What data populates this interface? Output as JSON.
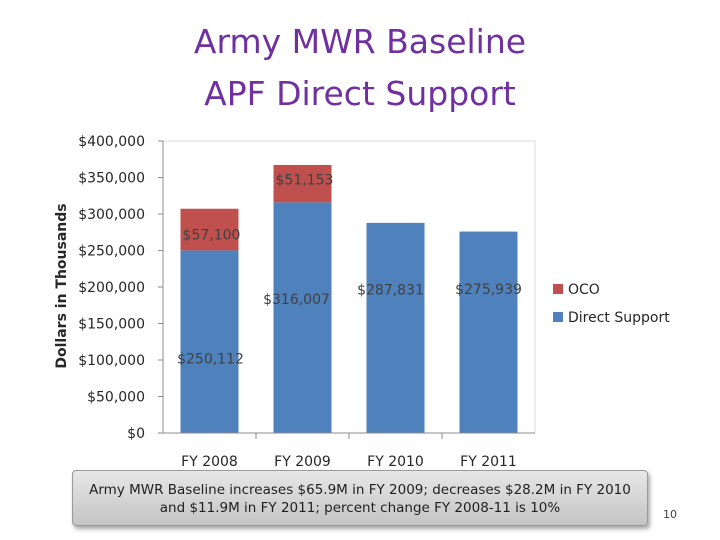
{
  "chart_data": {
    "type": "bar",
    "stacked": true,
    "title": "Army MWR Baseline",
    "subtitle": "APF Direct Support",
    "ylabel": "Dollars in Thousands",
    "xlabel": "",
    "categories": [
      "FY 2008",
      "FY 2009",
      "FY 2010",
      "FY 2011"
    ],
    "series": [
      {
        "name": "Direct Support",
        "color": "#4f81bd",
        "values": [
          250112,
          316007,
          287831,
          275939
        ],
        "labels": [
          "$250,112",
          "$316,007",
          "$287,831",
          "$275,939"
        ]
      },
      {
        "name": "OCO",
        "color": "#c0504d",
        "values": [
          57100,
          51153,
          0,
          0
        ],
        "labels": [
          "$57,100",
          "$51,153",
          "",
          ""
        ]
      }
    ],
    "ylim": [
      0,
      400000
    ],
    "yticks": [
      0,
      50000,
      100000,
      150000,
      200000,
      250000,
      300000,
      350000,
      400000
    ],
    "ytick_labels": [
      "$0",
      "$50,000",
      "$100,000",
      "$150,000",
      "$200,000",
      "$250,000",
      "$300,000",
      "$350,000",
      "$400,000"
    ],
    "legend_position": "right",
    "legend": [
      "OCO",
      "Direct Support"
    ]
  },
  "caption": "Army MWR Baseline increases $65.9M in FY 2009; decreases $28.2M in FY 2010 and $11.9M in FY 2011; percent change FY 2008-11 is 10%",
  "page_number": "10"
}
